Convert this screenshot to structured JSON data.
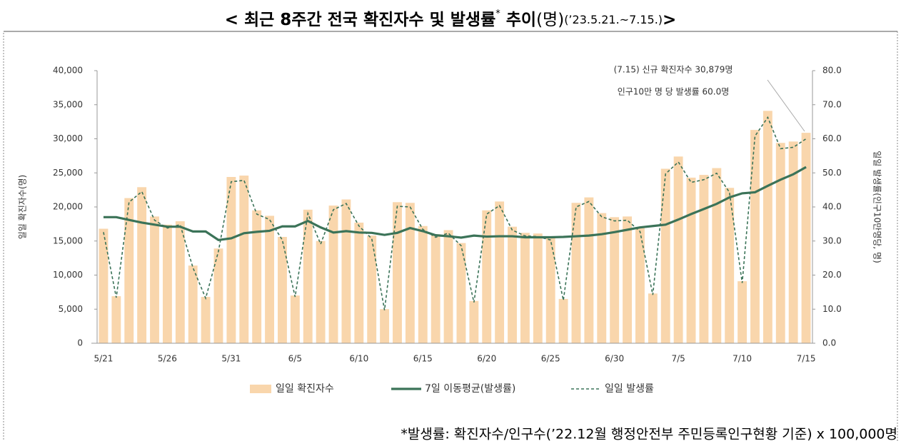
{
  "chart_data": {
    "type": "combo",
    "title_parts": [
      "< 최근 8주간 전국 확진자수 및 발생률",
      "*",
      "추이",
      "(명)",
      "(’23.5.21.~7.15.)",
      ">"
    ],
    "y_label": "일일 확진자수(명)",
    "y2_label": "일일 발생률(인구10만명당, 명)",
    "annotations": [
      "(7.15) 신규 확진자수 30,879명",
      "인구10만 명 당 발생률 60.0명"
    ],
    "footnote": "*발생률: 확진자수/인구수(’22.12월 행정안전부 주민등록인구현황 기준) x 100,000명",
    "categories": [
      "5/21",
      null,
      null,
      null,
      null,
      "5/26",
      null,
      null,
      null,
      null,
      "5/31",
      null,
      null,
      null,
      null,
      "6/5",
      null,
      null,
      null,
      null,
      "6/10",
      null,
      null,
      null,
      null,
      "6/15",
      null,
      null,
      null,
      null,
      "6/20",
      null,
      null,
      null,
      null,
      "6/25",
      null,
      null,
      null,
      null,
      "6/30",
      null,
      null,
      null,
      null,
      "7/5",
      null,
      null,
      null,
      null,
      "7/10",
      null,
      null,
      null,
      null,
      "7/15"
    ],
    "ylim": [
      0,
      40000
    ],
    "yticks": [
      0,
      {
        "value": 5000,
        "label": "5,000"
      },
      {
        "value": 10000,
        "label": "10,000"
      },
      {
        "value": 15000,
        "label": "15,000"
      },
      {
        "value": 20000,
        "label": "20,000"
      },
      {
        "value": 25000,
        "label": "25,000"
      },
      {
        "value": 30000,
        "label": "30,000"
      },
      {
        "value": 35000,
        "label": "35,000"
      },
      {
        "value": 40000,
        "label": "40,000"
      }
    ],
    "y2lim": [
      0,
      80
    ],
    "y2ticks": [
      {
        "value": 0,
        "label": "0.0"
      },
      {
        "value": 10,
        "label": "10.0"
      },
      {
        "value": 20,
        "label": "20.0"
      },
      {
        "value": 30,
        "label": "30.0"
      },
      {
        "value": 40,
        "label": "40.0"
      },
      {
        "value": 50,
        "label": "50.0"
      },
      {
        "value": 60,
        "label": "60.0"
      },
      {
        "value": 70,
        "label": "70.0"
      },
      {
        "value": 80,
        "label": "80.0"
      }
    ],
    "legend": "bottom",
    "series": [
      {
        "name": "일일 확진자수",
        "type": "bar",
        "color": "#f9d6ac",
        "axis": "y",
        "values": [
          16800,
          6900,
          21300,
          22900,
          18600,
          17400,
          17900,
          11400,
          6800,
          13900,
          24400,
          24600,
          19500,
          18700,
          15600,
          7000,
          19600,
          15000,
          20200,
          21100,
          17700,
          15800,
          5000,
          20700,
          20600,
          17200,
          16000,
          16600,
          14700,
          6200,
          19500,
          20800,
          17100,
          16200,
          16100,
          15600,
          6500,
          20600,
          21400,
          19100,
          18500,
          18600,
          16900,
          7300,
          25600,
          27400,
          24300,
          24700,
          25700,
          22800,
          9100,
          31300,
          34100,
          29400,
          29600,
          30879
        ]
      },
      {
        "name": "7일 이동평균(발생률)",
        "type": "line",
        "line_style": "solid",
        "color": "#3b7358",
        "axis": "y2",
        "values": [
          37.0,
          37.0,
          36.2,
          35.4,
          34.8,
          34.2,
          34.2,
          32.8,
          32.8,
          30.3,
          30.8,
          32.3,
          32.7,
          33.0,
          34.3,
          34.3,
          35.9,
          34.0,
          32.5,
          32.9,
          32.5,
          32.4,
          31.8,
          32.4,
          33.8,
          32.9,
          31.7,
          31.4,
          31.0,
          31.6,
          31.3,
          31.4,
          31.4,
          31.1,
          31.1,
          31.1,
          31.2,
          31.4,
          31.6,
          32.0,
          32.6,
          33.3,
          34.0,
          34.4,
          34.8,
          36.3,
          37.9,
          39.4,
          40.9,
          42.8,
          44.0,
          44.3,
          46.2,
          48.0,
          49.6,
          51.7
        ]
      },
      {
        "name": "일일 발생률",
        "type": "line",
        "line_style": "dashed",
        "color": "#3b7358",
        "axis": "y2",
        "values": [
          32.6,
          13.4,
          41.4,
          44.5,
          36.1,
          33.8,
          34.8,
          22.2,
          13.2,
          27.0,
          47.4,
          47.8,
          37.9,
          36.3,
          30.3,
          13.6,
          38.1,
          29.1,
          39.2,
          41.0,
          34.4,
          30.7,
          9.7,
          40.2,
          40.0,
          33.4,
          31.1,
          32.3,
          28.6,
          12.0,
          37.9,
          40.4,
          33.2,
          31.5,
          31.3,
          30.3,
          12.6,
          40.0,
          41.6,
          37.1,
          35.9,
          36.1,
          32.8,
          14.2,
          49.7,
          53.2,
          47.2,
          48.0,
          49.9,
          44.3,
          17.7,
          60.8,
          66.3,
          57.1,
          57.5,
          60.0
        ]
      }
    ]
  }
}
